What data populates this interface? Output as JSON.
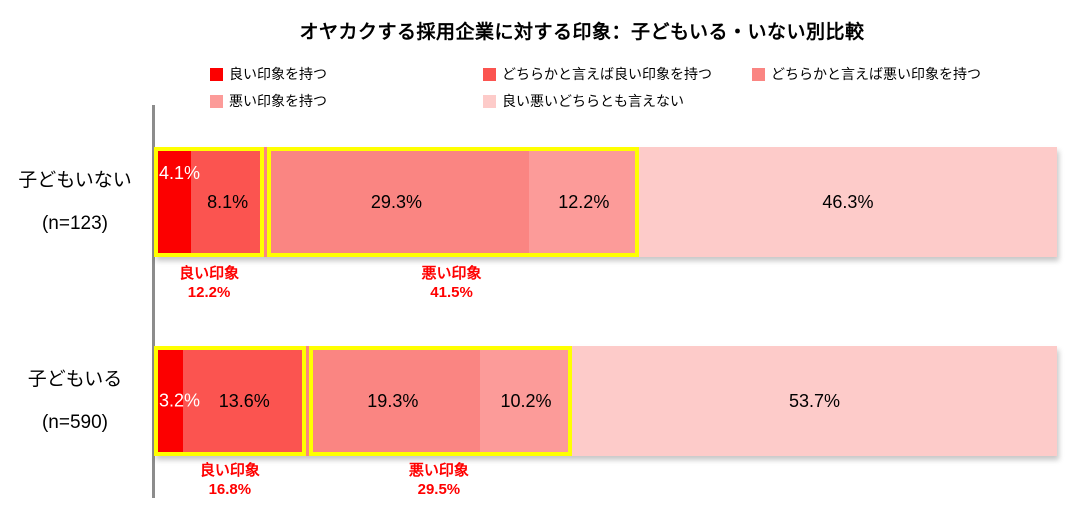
{
  "title": "オヤカクする採用企業に対する印象：子どもいる・いない別比較",
  "legend": {
    "items": [
      {
        "label": "良い印象を持つ",
        "color": "#FC0000"
      },
      {
        "label": "どちらかと言えば良い印象を持つ",
        "color": "#FB5450"
      },
      {
        "label": "どちらかと言えば悪い印象を持つ",
        "color": "#FA8582"
      },
      {
        "label": "悪い印象を持つ",
        "color": "#FC9B99"
      },
      {
        "label": "良い悪いどちらとも言えない",
        "color": "#FDCBC9"
      }
    ]
  },
  "chart_data": {
    "type": "bar",
    "orientation": "horizontal_stacked",
    "title": "オヤカクする採用企業に対する印象：子どもいる・いない別比較",
    "unit": "%",
    "xlim": [
      0,
      100
    ],
    "grid": false,
    "legend_position": "top",
    "categories": [
      "子どもいない (n=123)",
      "子どもいる (n=590)"
    ],
    "series": [
      {
        "name": "良い印象を持つ",
        "values": [
          4.1,
          3.2
        ]
      },
      {
        "name": "どちらかと言えば良い印象を持つ",
        "values": [
          8.1,
          13.6
        ]
      },
      {
        "name": "どちらかと言えば悪い印象を持つ",
        "values": [
          29.3,
          19.3
        ]
      },
      {
        "name": "悪い印象を持つ",
        "values": [
          12.2,
          10.2
        ]
      },
      {
        "name": "良い悪いどちらとも言えない",
        "values": [
          46.3,
          53.7
        ]
      }
    ],
    "annotations": [
      {
        "category": "子どもいない (n=123)",
        "label": "良い印象",
        "value": 12.2
      },
      {
        "category": "子どもいない (n=123)",
        "label": "悪い印象",
        "value": 41.5
      },
      {
        "category": "子どもいる (n=590)",
        "label": "良い印象",
        "value": 16.8
      },
      {
        "category": "子どもいる (n=590)",
        "label": "悪い印象",
        "value": 29.5
      }
    ]
  },
  "bars": [
    {
      "label_line1": "子どもいない",
      "label_line2": "(n=123)",
      "values": [
        4.1,
        8.1,
        29.3,
        12.2,
        46.3
      ],
      "labels": [
        "4.1%",
        "8.1%",
        "29.3%",
        "12.2%",
        "46.3%"
      ],
      "good": {
        "label": "良い印象",
        "value": "12.2%",
        "pct": 12.2
      },
      "bad": {
        "label": "悪い印象",
        "value": "41.5%",
        "pct": 41.5
      }
    },
    {
      "label_line1": "子どもいる",
      "label_line2": "(n=590)",
      "values": [
        3.2,
        13.6,
        19.3,
        10.2,
        53.7
      ],
      "labels": [
        "3.2%",
        "13.6%",
        "19.3%",
        "10.2%",
        "53.7%"
      ],
      "good": {
        "label": "良い印象",
        "value": "16.8%",
        "pct": 16.8
      },
      "bad": {
        "label": "悪い印象",
        "value": "29.5%",
        "pct": 29.5
      }
    }
  ],
  "colors": {
    "highlight_box": "#FFFF00",
    "annotation_text": "#FF0000",
    "axis_line": "#8C8C8C"
  }
}
